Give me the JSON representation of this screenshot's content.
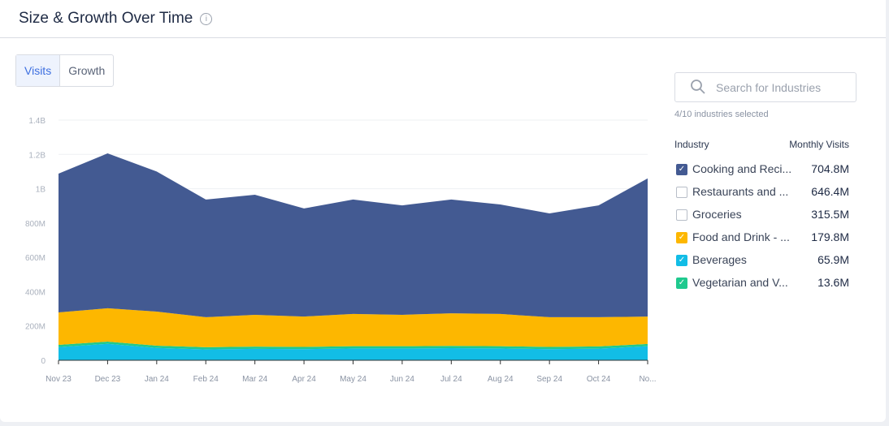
{
  "header": {
    "title": "Size & Growth Over Time",
    "info_icon": "info-icon"
  },
  "tabs": [
    {
      "label": "Visits",
      "active": true
    },
    {
      "label": "Growth",
      "active": false
    }
  ],
  "search": {
    "placeholder": "Search for Industries"
  },
  "selection_text": "4/10 industries selected",
  "table": {
    "col_industry": "Industry",
    "col_visits": "Monthly Visits",
    "rows": [
      {
        "name": "Cooking and Reci...",
        "visits": "704.8M",
        "checked": true,
        "color": "#435a92"
      },
      {
        "name": "Restaurants and ...",
        "visits": "646.4M",
        "checked": false,
        "color": ""
      },
      {
        "name": "Groceries",
        "visits": "315.5M",
        "checked": false,
        "color": ""
      },
      {
        "name": "Food and Drink - ...",
        "visits": "179.8M",
        "checked": true,
        "color": "#fdb700"
      },
      {
        "name": "Beverages",
        "visits": "65.9M",
        "checked": true,
        "color": "#12bde6"
      },
      {
        "name": "Vegetarian and V...",
        "visits": "13.6M",
        "checked": true,
        "color": "#1fc98e"
      }
    ]
  },
  "chart_data": {
    "type": "area",
    "stacked": true,
    "grid": true,
    "x": [
      "Nov 23",
      "Dec 23",
      "Jan 24",
      "Feb 24",
      "Mar 24",
      "Apr 24",
      "May 24",
      "Jun 24",
      "Jul 24",
      "Aug 24",
      "Sep 24",
      "Oct 24",
      "No..."
    ],
    "yticks": [
      "0",
      "200M",
      "400M",
      "600M",
      "800M",
      "1B",
      "1.2B",
      "1.4B"
    ],
    "ylim": [
      0,
      1400
    ],
    "series": [
      {
        "name": "Beverages",
        "color": "#12bde6",
        "values": [
          77,
          96,
          72,
          63,
          67,
          65,
          69,
          69,
          71,
          69,
          65,
          68,
          82
        ]
      },
      {
        "name": "Vegetarian and V...",
        "color": "#1fc98e",
        "values": [
          13,
          13,
          13,
          13,
          13,
          13,
          13,
          13,
          13,
          13,
          13,
          13,
          13
        ]
      },
      {
        "name": "Food and Drink - ...",
        "color": "#fdb700",
        "values": [
          189,
          194,
          199,
          175,
          185,
          177,
          188,
          183,
          190,
          188,
          173,
          170,
          160
        ]
      },
      {
        "name": "Cooking and Reci...",
        "color": "#435a92",
        "values": [
          809,
          903,
          816,
          686,
          700,
          630,
          667,
          638,
          663,
          638,
          605,
          652,
          805
        ]
      }
    ]
  }
}
